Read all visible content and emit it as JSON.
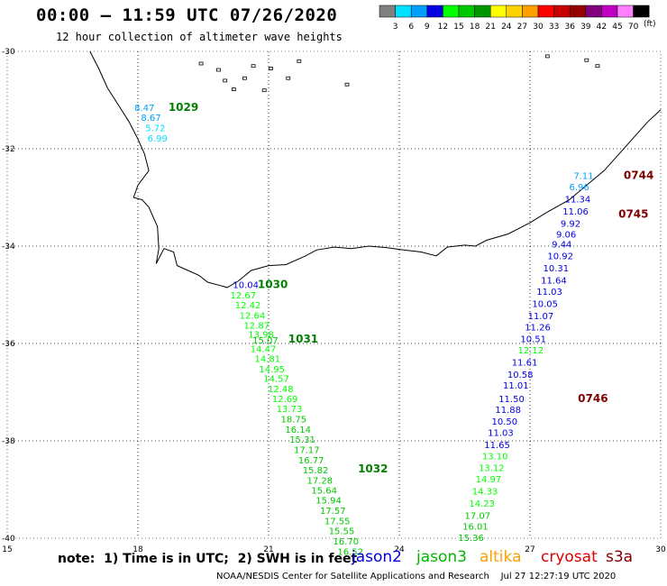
{
  "header": {
    "title": "00:00 – 11:59 UTC 07/26/2020",
    "subtitle": "12 hour collection of altimeter wave heights"
  },
  "legend": {
    "unit": "(ft)",
    "bins": [
      {
        "label": "3",
        "color": "#808080"
      },
      {
        "label": "6",
        "color": "#00e0ff"
      },
      {
        "label": "9",
        "color": "#00a0ff"
      },
      {
        "label": "12",
        "color": "#0000e0"
      },
      {
        "label": "15",
        "color": "#00ff00"
      },
      {
        "label": "18",
        "color": "#00c800"
      },
      {
        "label": "21",
        "color": "#009600"
      },
      {
        "label": "24",
        "color": "#ffff00"
      },
      {
        "label": "27",
        "color": "#ffd200"
      },
      {
        "label": "30",
        "color": "#ffa000"
      },
      {
        "label": "33",
        "color": "#ff0000"
      },
      {
        "label": "36",
        "color": "#c80000"
      },
      {
        "label": "39",
        "color": "#960000"
      },
      {
        "label": "42",
        "color": "#800080"
      },
      {
        "label": "45",
        "color": "#c000c0"
      },
      {
        "label": "70",
        "color": "#ff80ff"
      },
      {
        "label": "",
        "color": "#000000"
      }
    ]
  },
  "map": {
    "lon_range": [
      15,
      30
    ],
    "lat_range": [
      -40,
      -30
    ],
    "lon_ticks": [
      "15",
      "18",
      "21",
      "24",
      "27",
      "30"
    ],
    "lat_ticks": [
      "-30",
      "-32",
      "-34",
      "-36",
      "-38",
      "-40"
    ],
    "grid": "dotted"
  },
  "passes": [
    {
      "label": "1029",
      "color": "#008000",
      "lon": 18.7,
      "lat": -31.22
    },
    {
      "label": "1030",
      "color": "#008000",
      "lon": 20.75,
      "lat": -34.86
    },
    {
      "label": "1031",
      "color": "#008000",
      "lon": 21.45,
      "lat": -35.98
    },
    {
      "label": "1032",
      "color": "#008000",
      "lon": 23.05,
      "lat": -38.65
    },
    {
      "label": "0744",
      "color": "#800000",
      "lon": 29.15,
      "lat": -32.62
    },
    {
      "label": "0745",
      "color": "#800000",
      "lon": 29.03,
      "lat": -33.42
    },
    {
      "label": "0746",
      "color": "#800000",
      "lon": 28.1,
      "lat": -37.2
    }
  ],
  "observations": [
    {
      "v": "8.47",
      "lon": 17.92,
      "lat": -31.22,
      "c": "#00a0ff"
    },
    {
      "v": "8.67",
      "lon": 18.07,
      "lat": -31.43,
      "c": "#00a0ff"
    },
    {
      "v": "5.72",
      "lon": 18.17,
      "lat": -31.64,
      "c": "#00e0ff"
    },
    {
      "v": "6.99",
      "lon": 18.22,
      "lat": -31.85,
      "c": "#00e0ff"
    },
    {
      "v": "10.04",
      "lon": 20.18,
      "lat": -34.86,
      "c": "#0000e0"
    },
    {
      "v": "12.67",
      "lon": 20.12,
      "lat": -35.07,
      "c": "#00ff00"
    },
    {
      "v": "12.42",
      "lon": 20.23,
      "lat": -35.28,
      "c": "#00ff00"
    },
    {
      "v": "12.64",
      "lon": 20.33,
      "lat": -35.49,
      "c": "#00ff00"
    },
    {
      "v": "12.87",
      "lon": 20.43,
      "lat": -35.69,
      "c": "#00ff00"
    },
    {
      "v": "13.98",
      "lon": 20.53,
      "lat": -35.88,
      "c": "#00ff00"
    },
    {
      "v": "15.07",
      "lon": 20.63,
      "lat": -36.0,
      "c": "#00c800"
    },
    {
      "v": "14.47",
      "lon": 20.58,
      "lat": -36.18,
      "c": "#00ff00"
    },
    {
      "v": "14.81",
      "lon": 20.68,
      "lat": -36.38,
      "c": "#00ff00"
    },
    {
      "v": "14.95",
      "lon": 20.78,
      "lat": -36.59,
      "c": "#00ff00"
    },
    {
      "v": "14.57",
      "lon": 20.88,
      "lat": -36.79,
      "c": "#00ff00"
    },
    {
      "v": "12.48",
      "lon": 20.98,
      "lat": -37.0,
      "c": "#00ff00"
    },
    {
      "v": "12.69",
      "lon": 21.08,
      "lat": -37.2,
      "c": "#00ff00"
    },
    {
      "v": "13.73",
      "lon": 21.18,
      "lat": -37.41,
      "c": "#00ff00"
    },
    {
      "v": "18.75",
      "lon": 21.28,
      "lat": -37.62,
      "c": "#00c800"
    },
    {
      "v": "16.14",
      "lon": 21.38,
      "lat": -37.83,
      "c": "#00c800"
    },
    {
      "v": "15.31",
      "lon": 21.48,
      "lat": -38.04,
      "c": "#00c800"
    },
    {
      "v": "17.17",
      "lon": 21.58,
      "lat": -38.25,
      "c": "#00c800"
    },
    {
      "v": "16.77",
      "lon": 21.68,
      "lat": -38.46,
      "c": "#00c800"
    },
    {
      "v": "15.82",
      "lon": 21.78,
      "lat": -38.67,
      "c": "#00c800"
    },
    {
      "v": "17.28",
      "lon": 21.88,
      "lat": -38.88,
      "c": "#00c800"
    },
    {
      "v": "15.64",
      "lon": 21.98,
      "lat": -39.08,
      "c": "#00c800"
    },
    {
      "v": "15.94",
      "lon": 22.08,
      "lat": -39.29,
      "c": "#00c800"
    },
    {
      "v": "17.57",
      "lon": 22.18,
      "lat": -39.5,
      "c": "#00c800"
    },
    {
      "v": "17.55",
      "lon": 22.28,
      "lat": -39.71,
      "c": "#00c800"
    },
    {
      "v": "15.55",
      "lon": 22.38,
      "lat": -39.92,
      "c": "#00c800"
    },
    {
      "v": "16.70",
      "lon": 22.48,
      "lat": -40.13,
      "c": "#00c800"
    },
    {
      "v": "16.52",
      "lon": 22.58,
      "lat": -40.34,
      "c": "#00c800"
    },
    {
      "v": "7.11",
      "lon": 28.0,
      "lat": -32.62,
      "c": "#00a0ff"
    },
    {
      "v": "6.96",
      "lon": 27.9,
      "lat": -32.85,
      "c": "#00a0ff"
    },
    {
      "v": "11.34",
      "lon": 27.8,
      "lat": -33.1,
      "c": "#0000e0"
    },
    {
      "v": "11.06",
      "lon": 27.75,
      "lat": -33.35,
      "c": "#0000e0"
    },
    {
      "v": "9.92",
      "lon": 27.7,
      "lat": -33.6,
      "c": "#0000e0"
    },
    {
      "v": "9.06",
      "lon": 27.6,
      "lat": -33.82,
      "c": "#0000e0"
    },
    {
      "v": "9.44",
      "lon": 27.5,
      "lat": -34.03,
      "c": "#0000e0"
    },
    {
      "v": "10.92",
      "lon": 27.4,
      "lat": -34.27,
      "c": "#0000e0"
    },
    {
      "v": "10.31",
      "lon": 27.3,
      "lat": -34.52,
      "c": "#0000e0"
    },
    {
      "v": "11.64",
      "lon": 27.25,
      "lat": -34.77,
      "c": "#0000e0"
    },
    {
      "v": "11.03",
      "lon": 27.15,
      "lat": -35.0,
      "c": "#0000e0"
    },
    {
      "v": "10.05",
      "lon": 27.05,
      "lat": -35.25,
      "c": "#0000e0"
    },
    {
      "v": "11.07",
      "lon": 26.95,
      "lat": -35.5,
      "c": "#0000e0"
    },
    {
      "v": "11.26",
      "lon": 26.88,
      "lat": -35.73,
      "c": "#0000e0"
    },
    {
      "v": "10.51",
      "lon": 26.78,
      "lat": -35.97,
      "c": "#0000e0"
    },
    {
      "v": "12.12",
      "lon": 26.72,
      "lat": -36.2,
      "c": "#00ff00"
    },
    {
      "v": "11.61",
      "lon": 26.58,
      "lat": -36.45,
      "c": "#0000e0"
    },
    {
      "v": "10.58",
      "lon": 26.48,
      "lat": -36.7,
      "c": "#0000e0"
    },
    {
      "v": "11.01",
      "lon": 26.38,
      "lat": -36.93,
      "c": "#0000e0"
    },
    {
      "v": "11.50",
      "lon": 26.28,
      "lat": -37.2,
      "c": "#0000e0"
    },
    {
      "v": "11.88",
      "lon": 26.2,
      "lat": -37.43,
      "c": "#0000e0"
    },
    {
      "v": "10.50",
      "lon": 26.12,
      "lat": -37.67,
      "c": "#0000e0"
    },
    {
      "v": "11.03",
      "lon": 26.03,
      "lat": -37.9,
      "c": "#0000e0"
    },
    {
      "v": "11.65",
      "lon": 25.95,
      "lat": -38.15,
      "c": "#0000e0"
    },
    {
      "v": "13.10",
      "lon": 25.9,
      "lat": -38.38,
      "c": "#00ff00"
    },
    {
      "v": "13.12",
      "lon": 25.82,
      "lat": -38.62,
      "c": "#00ff00"
    },
    {
      "v": "14.97",
      "lon": 25.75,
      "lat": -38.85,
      "c": "#00ff00"
    },
    {
      "v": "14.33",
      "lon": 25.67,
      "lat": -39.1,
      "c": "#00ff00"
    },
    {
      "v": "14.23",
      "lon": 25.6,
      "lat": -39.35,
      "c": "#00ff00"
    },
    {
      "v": "17.07",
      "lon": 25.5,
      "lat": -39.6,
      "c": "#00c800"
    },
    {
      "v": "16.01",
      "lon": 25.45,
      "lat": -39.82,
      "c": "#00c800"
    },
    {
      "v": "15.36",
      "lon": 25.35,
      "lat": -40.06,
      "c": "#00c800"
    }
  ],
  "coast": [
    [
      16.9,
      -30.0
    ],
    [
      17.1,
      -30.35
    ],
    [
      17.3,
      -30.75
    ],
    [
      17.55,
      -31.1
    ],
    [
      17.8,
      -31.45
    ],
    [
      18.0,
      -31.8
    ],
    [
      18.15,
      -32.1
    ],
    [
      18.25,
      -32.45
    ],
    [
      18.0,
      -32.75
    ],
    [
      17.9,
      -33.0
    ],
    [
      18.1,
      -33.05
    ],
    [
      18.25,
      -33.2
    ],
    [
      18.45,
      -33.6
    ],
    [
      18.48,
      -34.05
    ],
    [
      18.42,
      -34.36
    ],
    [
      18.6,
      -34.05
    ],
    [
      18.82,
      -34.12
    ],
    [
      18.9,
      -34.4
    ],
    [
      19.15,
      -34.5
    ],
    [
      19.4,
      -34.6
    ],
    [
      19.6,
      -34.74
    ],
    [
      19.85,
      -34.8
    ],
    [
      20.05,
      -34.85
    ],
    [
      20.3,
      -34.72
    ],
    [
      20.6,
      -34.5
    ],
    [
      21.0,
      -34.4
    ],
    [
      21.4,
      -34.38
    ],
    [
      21.85,
      -34.2
    ],
    [
      22.1,
      -34.08
    ],
    [
      22.5,
      -34.02
    ],
    [
      22.9,
      -34.05
    ],
    [
      23.3,
      -34.0
    ],
    [
      23.7,
      -34.03
    ],
    [
      24.1,
      -34.08
    ],
    [
      24.5,
      -34.12
    ],
    [
      24.85,
      -34.2
    ],
    [
      25.1,
      -34.02
    ],
    [
      25.5,
      -33.98
    ],
    [
      25.75,
      -34.0
    ],
    [
      26.0,
      -33.88
    ],
    [
      26.5,
      -33.75
    ],
    [
      27.0,
      -33.52
    ],
    [
      27.4,
      -33.3
    ],
    [
      27.9,
      -33.05
    ],
    [
      28.3,
      -32.75
    ],
    [
      28.7,
      -32.45
    ],
    [
      29.05,
      -32.1
    ],
    [
      29.35,
      -31.8
    ],
    [
      29.7,
      -31.45
    ],
    [
      30.0,
      -31.2
    ]
  ],
  "islands": [
    {
      "lon": 28.3,
      "lat": -30.18
    },
    {
      "lon": 28.55,
      "lat": -30.3
    },
    {
      "lon": 27.4,
      "lat": -30.1
    },
    {
      "lon": 22.8,
      "lat": -30.68
    },
    {
      "lon": 19.45,
      "lat": -30.25
    },
    {
      "lon": 19.85,
      "lat": -30.38
    },
    {
      "lon": 20.0,
      "lat": -30.6
    },
    {
      "lon": 20.2,
      "lat": -30.78
    },
    {
      "lon": 20.45,
      "lat": -30.55
    },
    {
      "lon": 20.65,
      "lat": -30.3
    },
    {
      "lon": 21.05,
      "lat": -30.35
    },
    {
      "lon": 21.7,
      "lat": -30.2
    },
    {
      "lon": 21.45,
      "lat": -30.55
    },
    {
      "lon": 20.9,
      "lat": -30.8
    }
  ],
  "note": "note:  1) Time is in UTC;  2) SWH is in feet",
  "satellites": [
    {
      "name": "jason2",
      "color": "#0000e0"
    },
    {
      "name": "jason3",
      "color": "#00b800"
    },
    {
      "name": "altika",
      "color": "#ffa000"
    },
    {
      "name": "cryosat",
      "color": "#e00000"
    },
    {
      "name": "s3a",
      "color": "#800000"
    }
  ],
  "footer": {
    "agency": "NOAA/NESDIS Center for Satellite Applications and Research",
    "timestamp": "Jul 27 12:27:19 UTC 2020"
  }
}
